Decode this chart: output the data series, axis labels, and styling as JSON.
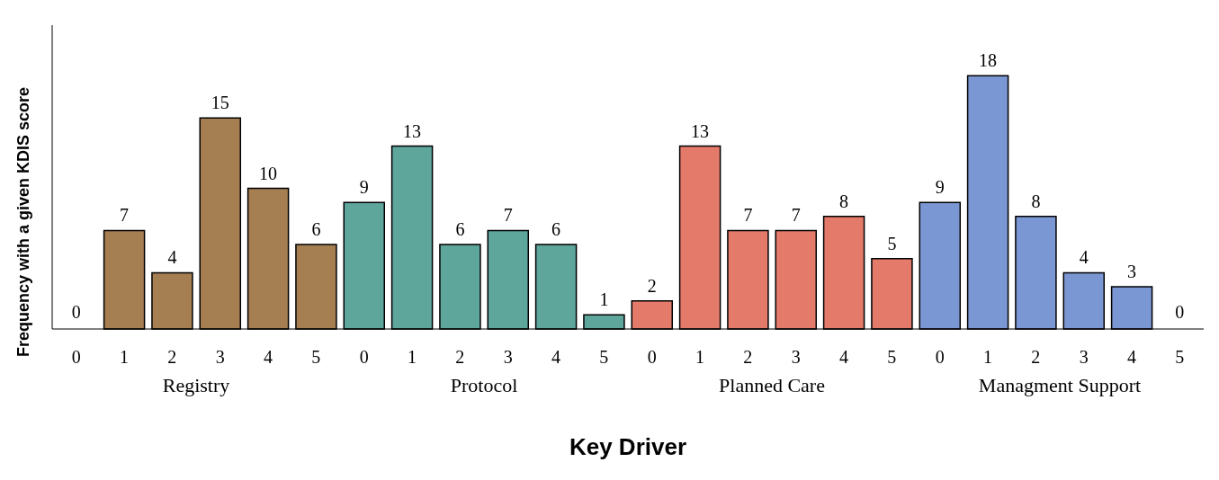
{
  "chart_data": {
    "type": "bar",
    "xlabel": "Key Driver",
    "ylabel": "Frequency with a given KDIS score",
    "categories": [
      "0",
      "1",
      "2",
      "3",
      "4",
      "5",
      "0",
      "1",
      "2",
      "3",
      "4",
      "5",
      "0",
      "1",
      "2",
      "3",
      "4",
      "5",
      "0",
      "1",
      "2",
      "3",
      "4",
      "5"
    ],
    "series": [
      {
        "name": "Registry",
        "color": "#a57e52",
        "values": [
          0,
          7,
          4,
          15,
          10,
          6,
          null,
          null,
          null,
          null,
          null,
          null,
          null,
          null,
          null,
          null,
          null,
          null,
          null,
          null,
          null,
          null,
          null,
          null
        ]
      },
      {
        "name": "Protocol",
        "color": "#5ea59c",
        "values": [
          null,
          null,
          null,
          null,
          null,
          null,
          9,
          13,
          6,
          7,
          6,
          1,
          null,
          null,
          null,
          null,
          null,
          null,
          null,
          null,
          null,
          null,
          null,
          null
        ]
      },
      {
        "name": "Planned Care",
        "color": "#e37a6a",
        "values": [
          null,
          null,
          null,
          null,
          null,
          null,
          null,
          null,
          null,
          null,
          null,
          null,
          2,
          13,
          7,
          7,
          8,
          5,
          null,
          null,
          null,
          null,
          null,
          null
        ]
      },
      {
        "name": "Managment Support",
        "color": "#7b97d3",
        "values": [
          null,
          null,
          null,
          null,
          null,
          null,
          null,
          null,
          null,
          null,
          null,
          null,
          null,
          null,
          null,
          null,
          null,
          null,
          9,
          18,
          8,
          4,
          3,
          0
        ]
      }
    ],
    "relative": false,
    "data_labels": true
  }
}
